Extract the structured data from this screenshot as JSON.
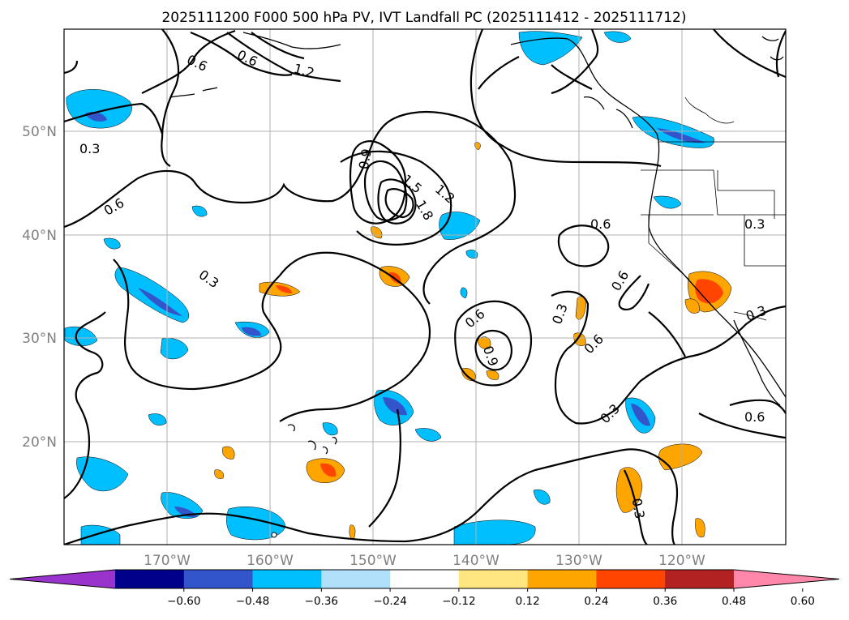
{
  "title": "2025111200 F000 500 hPa PV, IVT Landfall PC (2025111412 - 2025111712)",
  "lat_ticks": [
    "50°N",
    "40°N",
    "30°N",
    "20°N"
  ],
  "lon_ticks": [
    "170°W",
    "160°W",
    "150°W",
    "140°W",
    "130°W",
    "120°W"
  ],
  "contour_labels": [
    "0.6",
    "0.6",
    "1.2",
    "0.3",
    "0.6",
    "0.9",
    "1.5",
    "1.2",
    "1.8",
    "0.6",
    "0.3",
    "0.6",
    "0.9",
    "0.3",
    "0.6",
    "0.3",
    "0.6",
    "0.3",
    "0.6",
    "0.3",
    "0.3"
  ],
  "colorbar": {
    "colors": [
      "#9933cc",
      "#00008b",
      "#3355cc",
      "#00bfff",
      "#b0e0fa",
      "#ffffff",
      "#ffe680",
      "#ffa500",
      "#ff4500",
      "#b22222",
      "#ff88aa"
    ],
    "tick_labels": [
      "−0.60",
      "−0.48",
      "−0.36",
      "−0.24",
      "−0.12",
      "0.12",
      "0.24",
      "0.36",
      "0.48",
      "0.60"
    ]
  },
  "chart_data": {
    "type": "map",
    "title": "2025111200 F000 500 hPa PV, IVT Landfall PC (2025111412 - 2025111712)",
    "variable_contours": "500 hPa PV",
    "variable_shading": "IVT Landfall PC",
    "extent": {
      "lon": [
        -180,
        -110
      ],
      "lat": [
        10,
        60
      ]
    },
    "contour_levels": [
      0.3,
      0.6,
      0.9,
      1.2,
      1.5,
      1.8
    ],
    "shading_levels": [
      -0.6,
      -0.48,
      -0.36,
      -0.24,
      -0.12,
      0.12,
      0.24,
      0.36,
      0.48,
      0.6
    ]
  }
}
